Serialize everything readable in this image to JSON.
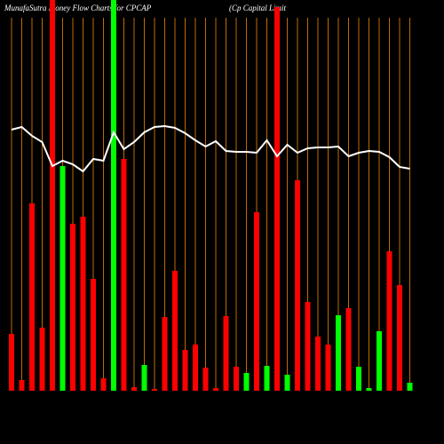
{
  "chart_data": {
    "type": "bar",
    "title": "MunafaSutra  Money Flow  Charts for CPCAP",
    "subtitle": "(Cp Capital Limit",
    "background": "#000000",
    "grid_color": "#c06a00",
    "ylim": [
      0,
      440
    ],
    "bars": {
      "values": [
        64,
        12,
        211,
        71,
        440,
        253,
        188,
        196,
        126,
        14,
        440,
        261,
        4,
        29,
        2,
        83,
        135,
        46,
        52,
        26,
        3,
        84,
        27,
        20,
        201,
        28,
        432,
        18,
        237,
        100,
        61,
        52,
        85,
        93,
        27,
        3,
        67,
        157,
        119,
        9
      ],
      "colors": [
        "#ff0000",
        "#ff0000",
        "#ff0000",
        "#ff0000",
        "#ff0000",
        "#00ff00",
        "#ff0000",
        "#ff0000",
        "#ff0000",
        "#ff0000",
        "#00ff00",
        "#ff0000",
        "#ff0000",
        "#00ff00",
        "#ff0000",
        "#ff0000",
        "#ff0000",
        "#ff0000",
        "#ff0000",
        "#ff0000",
        "#ff0000",
        "#ff0000",
        "#ff0000",
        "#00ff00",
        "#ff0000",
        "#00ff00",
        "#ff0000",
        "#00ff00",
        "#ff0000",
        "#ff0000",
        "#ff0000",
        "#ff0000",
        "#00ff00",
        "#ff0000",
        "#00ff00",
        "#00ff00",
        "#00ff00",
        "#ff0000",
        "#ff0000",
        "#00ff00"
      ]
    },
    "line": {
      "color": "#ffffff",
      "values": [
        294,
        297,
        287,
        280,
        253,
        259,
        255,
        247,
        261,
        259,
        291,
        272,
        280,
        291,
        297,
        298,
        296,
        290,
        282,
        275,
        281,
        270,
        269,
        269,
        268,
        282,
        264,
        277,
        268,
        273,
        274,
        274,
        275,
        264,
        268,
        270,
        269,
        263,
        252,
        250
      ]
    }
  }
}
